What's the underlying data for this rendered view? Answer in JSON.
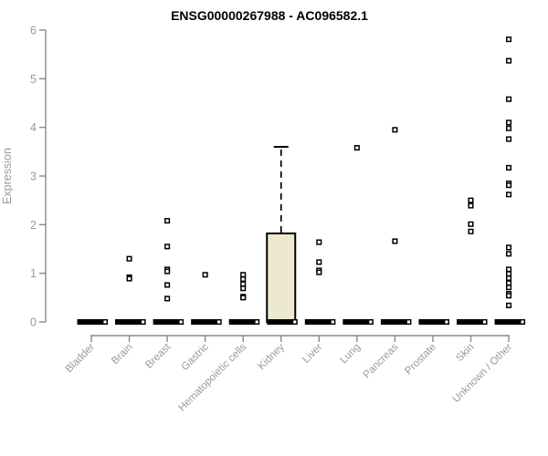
{
  "chart_data": {
    "type": "boxplot",
    "title": "ENSG00000267988 - AC096582.1",
    "ylabel": "Expression",
    "xlabel": "",
    "ylim": [
      0,
      6
    ],
    "yticks": [
      0,
      1,
      2,
      3,
      4,
      5,
      6
    ],
    "grid": false,
    "legend": null,
    "categories": [
      "Bladder",
      "Brain",
      "Breast",
      "Gastric",
      "Hematopoietic cells",
      "Kidney",
      "Liver",
      "Lung",
      "Pancreas",
      "Prostate",
      "Skin",
      "Unknown / Other"
    ],
    "boxes": [
      {
        "category": "Bladder",
        "median": 0,
        "q1": 0,
        "q3": 0,
        "whisker_low": 0,
        "whisker_high": 0,
        "points": [
          0
        ]
      },
      {
        "category": "Brain",
        "median": 0,
        "q1": 0,
        "q3": 0,
        "whisker_low": 0,
        "whisker_high": 0,
        "points": [
          1.3,
          0.92,
          0.89,
          0
        ]
      },
      {
        "category": "Breast",
        "median": 0,
        "q1": 0,
        "q3": 0,
        "whisker_low": 0,
        "whisker_high": 0,
        "points": [
          2.08,
          1.55,
          1.08,
          1.04,
          0.76,
          0.48,
          0
        ]
      },
      {
        "category": "Gastric",
        "median": 0,
        "q1": 0,
        "q3": 0,
        "whisker_low": 0,
        "whisker_high": 0,
        "points": [
          0.97,
          0
        ]
      },
      {
        "category": "Hematopoietic cells",
        "median": 0,
        "q1": 0,
        "q3": 0,
        "whisker_low": 0,
        "whisker_high": 0,
        "points": [
          0.97,
          0.88,
          0.78,
          0.69,
          0.52,
          0.5,
          0
        ]
      },
      {
        "category": "Kidney",
        "median": 0,
        "q1": 0,
        "q3": 1.82,
        "whisker_low": 0,
        "whisker_high": 3.6,
        "points": [
          0
        ]
      },
      {
        "category": "Liver",
        "median": 0,
        "q1": 0,
        "q3": 0,
        "whisker_low": 0,
        "whisker_high": 0,
        "points": [
          1.64,
          1.23,
          1.06,
          1.02,
          0
        ]
      },
      {
        "category": "Lung",
        "median": 0,
        "q1": 0,
        "q3": 0,
        "whisker_low": 0,
        "whisker_high": 0,
        "points": [
          3.58,
          0
        ]
      },
      {
        "category": "Pancreas",
        "median": 0,
        "q1": 0,
        "q3": 0,
        "whisker_low": 0,
        "whisker_high": 0,
        "points": [
          3.95,
          1.66,
          0
        ]
      },
      {
        "category": "Prostate",
        "median": 0,
        "q1": 0,
        "q3": 0,
        "whisker_low": 0,
        "whisker_high": 0,
        "points": [
          0
        ]
      },
      {
        "category": "Skin",
        "median": 0,
        "q1": 0,
        "q3": 0,
        "whisker_low": 0,
        "whisker_high": 0,
        "points": [
          2.5,
          2.39,
          2.01,
          1.86,
          0
        ]
      },
      {
        "category": "Unknown / Other",
        "median": 0,
        "q1": 0,
        "q3": 0,
        "whisker_low": 0,
        "whisker_high": 0,
        "points": [
          5.81,
          5.37,
          4.58,
          4.1,
          3.98,
          3.76,
          3.17,
          2.85,
          2.81,
          2.62,
          1.53,
          1.4,
          1.08,
          0.99,
          0.9,
          0.8,
          0.71,
          0.58,
          0.54,
          0.34,
          0
        ]
      }
    ],
    "colors": {
      "box_fill": "#ede8d0",
      "box_border": "#000000",
      "zero_bar": "#000000",
      "axis": "#8a8a8a",
      "tick_label": "#9a9a9a",
      "title": "#000000",
      "point_stroke": "#000000",
      "point_fill": "#ffffff"
    }
  }
}
